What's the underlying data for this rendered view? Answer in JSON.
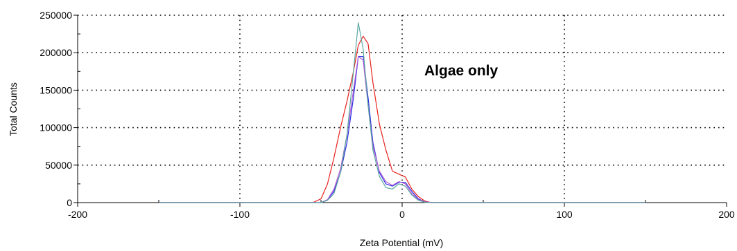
{
  "chart_data": {
    "type": "line",
    "title": "",
    "xlabel": "Zeta Potential (mV)",
    "ylabel": "Total Counts",
    "xlim": [
      -200,
      200
    ],
    "ylim": [
      0,
      250000
    ],
    "x_ticks": [
      -200,
      -100,
      0,
      100,
      200
    ],
    "x_tick_labels": [
      "-200",
      "-100",
      "0",
      "100",
      "200"
    ],
    "y_ticks": [
      0,
      50000,
      100000,
      150000,
      200000,
      250000
    ],
    "y_tick_labels": [
      "0",
      "50000",
      "100000",
      "150000",
      "200000",
      "250000"
    ],
    "grid": true,
    "annotation": "Algae only",
    "colors": {
      "red": "#e8201c",
      "blue": "#2a2ae0",
      "purple": "#b15cd6",
      "teal": "#5aa8a0"
    },
    "series": [
      {
        "color": "red",
        "x": [
          -150,
          -55,
          -50,
          -46,
          -42,
          -38,
          -34,
          -30,
          -27,
          -24,
          -21,
          -18,
          -14,
          -10,
          -6,
          -2,
          2,
          6,
          10,
          14,
          18,
          150
        ],
        "y": [
          0,
          0,
          5000,
          25000,
          60000,
          100000,
          135000,
          175000,
          210000,
          222000,
          212000,
          160000,
          105000,
          70000,
          42000,
          38000,
          34000,
          18000,
          8000,
          2000,
          0,
          0
        ]
      },
      {
        "color": "blue",
        "x": [
          -150,
          -50,
          -46,
          -42,
          -38,
          -34,
          -30,
          -27,
          -24,
          -21,
          -18,
          -14,
          -10,
          -6,
          -2,
          2,
          6,
          10,
          14,
          18,
          150
        ],
        "y": [
          0,
          0,
          4000,
          15000,
          40000,
          80000,
          140000,
          195000,
          195000,
          140000,
          80000,
          40000,
          25000,
          22000,
          27000,
          27000,
          15000,
          5000,
          1000,
          0,
          0
        ]
      },
      {
        "color": "purple",
        "x": [
          -150,
          -50,
          -46,
          -42,
          -38,
          -34,
          -30,
          -27,
          -24,
          -21,
          -18,
          -14,
          -10,
          -6,
          -2,
          2,
          6,
          10,
          14,
          18,
          150
        ],
        "y": [
          0,
          0,
          4000,
          18000,
          45000,
          90000,
          150000,
          195000,
          190000,
          130000,
          75000,
          42000,
          28000,
          23000,
          28000,
          25000,
          12000,
          4000,
          1000,
          0,
          0
        ]
      },
      {
        "color": "teal",
        "x": [
          -150,
          -50,
          -46,
          -42,
          -38,
          -34,
          -30,
          -27,
          -24,
          -21,
          -18,
          -14,
          -10,
          -6,
          -2,
          2,
          6,
          10,
          14,
          18,
          150
        ],
        "y": [
          0,
          0,
          3000,
          12000,
          40000,
          90000,
          175000,
          240000,
          205000,
          130000,
          70000,
          35000,
          20000,
          18000,
          25000,
          22000,
          10000,
          3000,
          500,
          0,
          0
        ]
      }
    ]
  }
}
